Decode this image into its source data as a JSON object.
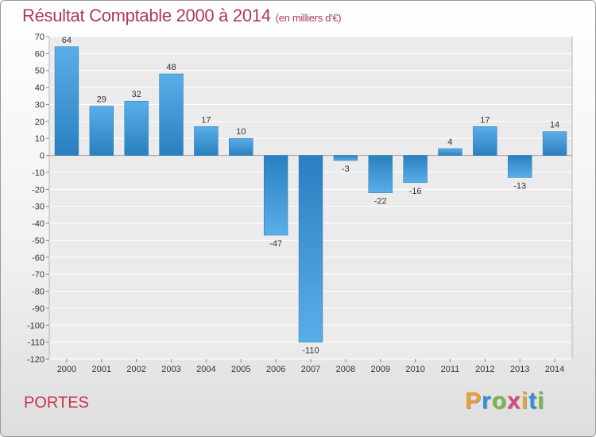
{
  "header": {
    "title": "Résultat Comptable 2000 à 2014",
    "subtitle": "(en milliers d'€)"
  },
  "location": "PORTES",
  "logo": {
    "letters": [
      "P",
      "r",
      "o",
      "x",
      "i",
      "t",
      "i"
    ],
    "colors": [
      "#e8a03a",
      "#2f8fd6",
      "#7ab648",
      "#d94a7a",
      "#e8a03a",
      "#2f8fd6",
      "#7ab648"
    ]
  },
  "chart_data": {
    "type": "bar",
    "title": "Résultat Comptable 2000 à 2014",
    "ylabel": "",
    "xlabel": "",
    "categories": [
      "2000",
      "2001",
      "2002",
      "2003",
      "2004",
      "2005",
      "2006",
      "2007",
      "2008",
      "2009",
      "2010",
      "2011",
      "2012",
      "2013",
      "2014"
    ],
    "values": [
      64,
      29,
      32,
      48,
      17,
      10,
      -47,
      -110,
      -3,
      -22,
      -16,
      4,
      17,
      -13,
      14
    ],
    "value_labels": [
      "64",
      "29",
      "32",
      "48",
      "17",
      "10",
      "-47",
      "-110",
      "-3",
      "-22",
      "-16",
      "4",
      "17",
      "-13",
      "14"
    ],
    "ylim": [
      -120,
      70
    ],
    "yticks": [
      70,
      60,
      50,
      40,
      30,
      20,
      10,
      0,
      -10,
      -20,
      -30,
      -40,
      -50,
      -60,
      -70,
      -80,
      -90,
      -100,
      -110,
      -120
    ],
    "grid": true,
    "bar_color": "#2f86c8"
  }
}
